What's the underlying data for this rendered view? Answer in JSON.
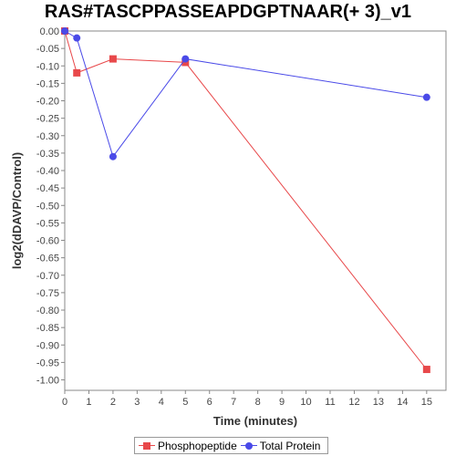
{
  "chart_data": {
    "type": "line",
    "title": "RAS#TASCPPASSEAPDGPTNAAR(+ 3)_v1",
    "xlabel": "Time (minutes)",
    "ylabel": "log2(dDAVP/Control)",
    "xlim": [
      0,
      15.8
    ],
    "ylim": [
      -1.03,
      0.0
    ],
    "x_ticks": [
      0,
      1,
      2,
      3,
      4,
      5,
      6,
      7,
      8,
      9,
      10,
      11,
      12,
      13,
      14,
      15
    ],
    "y_ticks": [
      0.0,
      -0.05,
      -0.1,
      -0.15,
      -0.2,
      -0.25,
      -0.3,
      -0.35,
      -0.4,
      -0.45,
      -0.5,
      -0.55,
      -0.6,
      -0.65,
      -0.7,
      -0.75,
      -0.8,
      -0.85,
      -0.9,
      -0.95,
      -1.0
    ],
    "y_tick_labels": [
      "0.00",
      "-0.05",
      "-0.10",
      "-0.15",
      "-0.20",
      "-0.25",
      "-0.30",
      "-0.35",
      "-0.40",
      "-0.45",
      "-0.50",
      "-0.55",
      "-0.60",
      "-0.65",
      "-0.70",
      "-0.75",
      "-0.80",
      "-0.85",
      "-0.90",
      "-0.95",
      "-1.00"
    ],
    "grid": false,
    "legend_position": "bottom",
    "series": [
      {
        "name": "Phosphopeptide",
        "color": "#e8484a",
        "marker": "square",
        "x": [
          0,
          0.5,
          2,
          5,
          15
        ],
        "y": [
          0.0,
          -0.12,
          -0.08,
          -0.09,
          -0.97
        ]
      },
      {
        "name": "Total Protein",
        "color": "#4a4ae8",
        "marker": "circle",
        "x": [
          0,
          0.5,
          2,
          5,
          15
        ],
        "y": [
          0.0,
          -0.02,
          -0.36,
          -0.08,
          -0.19
        ]
      }
    ]
  }
}
